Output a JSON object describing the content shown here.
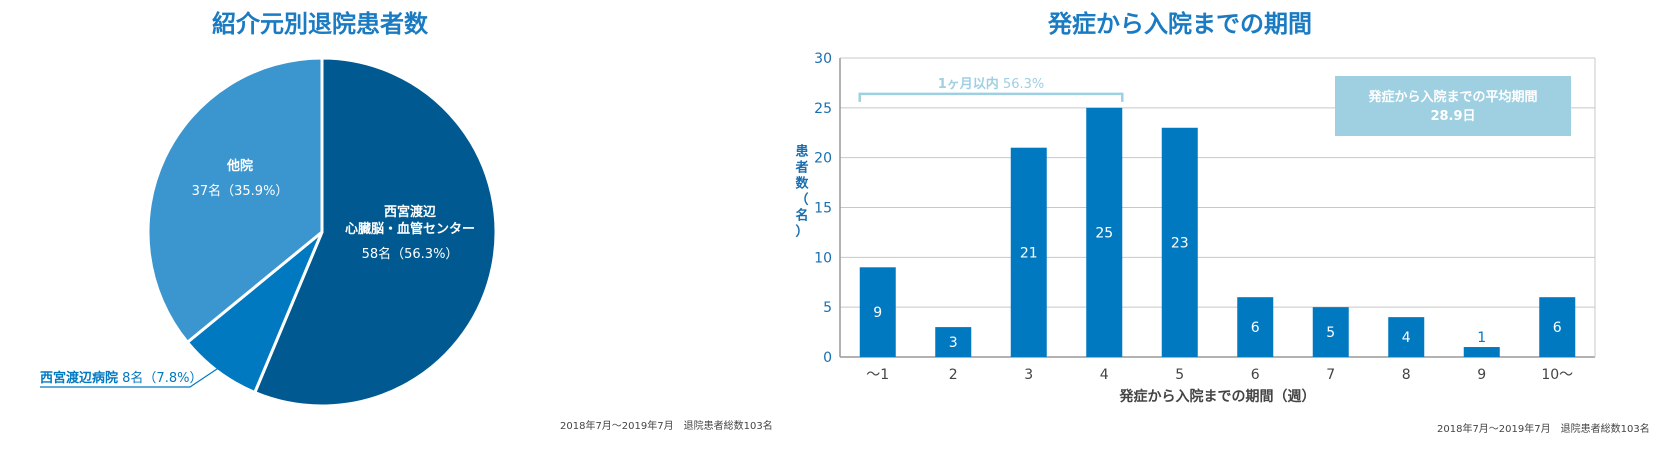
{
  "colors": {
    "title": "#1a7bc2",
    "pie_large": "#005a91",
    "pie_medium": "#3b95cf",
    "pie_small": "#0079c1",
    "bar": "#0079c1",
    "annotation": "#9fd0e2",
    "grid": "#c8c8c8",
    "axis_text": "#1a6fb0"
  },
  "chart_data": [
    {
      "type": "pie",
      "title": "紹介元別退院患者数",
      "total": 103,
      "slices": [
        {
          "label_lines": [
            "西宮渡辺",
            "心臓脳・血管センター"
          ],
          "value_text": "58名（56.3%）",
          "count": 58,
          "percent": 56.3,
          "color": "#005a91"
        },
        {
          "label_lines": [
            "西宮渡辺病院"
          ],
          "value_text": "8名（7.8%）",
          "count": 8,
          "percent": 7.8,
          "color": "#0079c1"
        },
        {
          "label_lines": [
            "他院"
          ],
          "value_text": "37名（35.9%）",
          "count": 37,
          "percent": 35.9,
          "color": "#3b95cf"
        }
      ],
      "note": "2018年7月～2019年7月　退院患者総数103名"
    },
    {
      "type": "bar",
      "title": "発症から入院までの期間",
      "categories": [
        "～1",
        "2",
        "3",
        "4",
        "5",
        "6",
        "7",
        "8",
        "9",
        "10～"
      ],
      "values": [
        9,
        3,
        21,
        25,
        23,
        6,
        5,
        4,
        1,
        6
      ],
      "xlabel": "発症から入院までの期間（週）",
      "ylabel": "患者数（名）",
      "ylim": [
        0,
        30
      ],
      "yticks": [
        0,
        5,
        10,
        15,
        20,
        25,
        30
      ],
      "grid": true,
      "bracket": {
        "label": "1ヶ月以内",
        "percent_text": "56.3%",
        "from_category": "～1",
        "to_category": "4",
        "at_value": 27
      },
      "callout": {
        "line1": "発症から入院までの平均期間",
        "line2": "28.9日"
      },
      "note": "2018年7月～2019年7月　退院患者総数103名"
    }
  ]
}
